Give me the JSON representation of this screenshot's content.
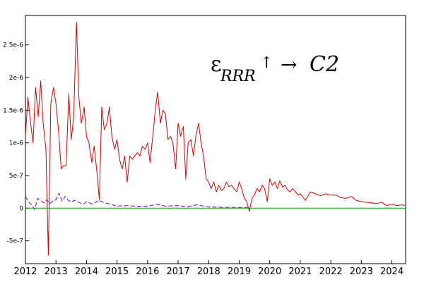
{
  "chart_data": {
    "type": "line",
    "title": "",
    "xlabel": "",
    "ylabel": "",
    "xlim": [
      2012.0,
      2024.45
    ],
    "ylim": [
      -8.5e-07,
      2.95e-06
    ],
    "grid": false,
    "annotation": {
      "symbol": "ε",
      "subscript": "RRR",
      "arrow_up": "↑",
      "arrow_right": "→",
      "target": "C2"
    },
    "x_ticks": [
      {
        "value": 2012,
        "label": "2012"
      },
      {
        "value": 2013,
        "label": "2013"
      },
      {
        "value": 2014,
        "label": "2014"
      },
      {
        "value": 2015,
        "label": "2015"
      },
      {
        "value": 2016,
        "label": "2016"
      },
      {
        "value": 2017,
        "label": "2017"
      },
      {
        "value": 2018,
        "label": "2018"
      },
      {
        "value": 2019,
        "label": "2019"
      },
      {
        "value": 2020,
        "label": "2020"
      },
      {
        "value": 2021,
        "label": "2021"
      },
      {
        "value": 2022,
        "label": "2022"
      },
      {
        "value": 2023,
        "label": "2023"
      },
      {
        "value": 2024,
        "label": "2024"
      }
    ],
    "y_ticks": [
      {
        "value": -5e-07,
        "label": "-5e-7"
      },
      {
        "value": 0,
        "label": "0"
      },
      {
        "value": 5e-07,
        "label": "5e-7"
      },
      {
        "value": 1e-06,
        "label": "1e-6"
      },
      {
        "value": 1.5e-06,
        "label": "1.5e-6"
      },
      {
        "value": 2e-06,
        "label": "2e-6"
      },
      {
        "value": 2.5e-06,
        "label": "2.5e-6"
      }
    ],
    "series": [
      {
        "color": "#d40000",
        "x": [
          2012.0,
          2012.08,
          2012.17,
          2012.25,
          2012.33,
          2012.42,
          2012.5,
          2012.58,
          2012.67,
          2012.75,
          2012.83,
          2012.92,
          2013.0,
          2013.08,
          2013.17,
          2013.25,
          2013.33,
          2013.42,
          2013.5,
          2013.58,
          2013.67,
          2013.75,
          2013.83,
          2013.92,
          2014.0,
          2014.08,
          2014.17,
          2014.25,
          2014.33,
          2014.42,
          2014.5,
          2014.58,
          2014.67,
          2014.75,
          2014.83,
          2014.92,
          2015.0,
          2015.08,
          2015.17,
          2015.25,
          2015.33,
          2015.42,
          2015.5,
          2015.58,
          2015.67,
          2015.75,
          2015.83,
          2015.92,
          2016.0,
          2016.08,
          2016.17,
          2016.25,
          2016.33,
          2016.42,
          2016.5,
          2016.58,
          2016.67,
          2016.75,
          2016.83,
          2016.92,
          2017.0,
          2017.08,
          2017.17,
          2017.25,
          2017.33,
          2017.42,
          2017.5,
          2017.58,
          2017.67,
          2017.75,
          2017.83,
          2017.92,
          2018.0,
          2018.08,
          2018.17,
          2018.25,
          2018.33,
          2018.42,
          2018.5,
          2018.58,
          2018.67,
          2018.75,
          2018.83,
          2018.92,
          2019.0,
          2019.08,
          2019.17,
          2019.25,
          2019.33,
          2019.42,
          2019.5,
          2019.58,
          2019.67,
          2019.75,
          2019.83,
          2019.92,
          2020.0,
          2020.08,
          2020.17,
          2020.25,
          2020.33,
          2020.42,
          2020.5,
          2020.58,
          2020.67,
          2020.75,
          2020.83,
          2020.92,
          2021.0,
          2021.17,
          2021.33,
          2021.5,
          2021.67,
          2021.83,
          2022.0,
          2022.17,
          2022.33,
          2022.5,
          2022.67,
          2022.83,
          2023.0,
          2023.17,
          2023.33,
          2023.5,
          2023.67,
          2023.83,
          2024.0,
          2024.17,
          2024.33,
          2024.42
        ],
        "y": [
          1.1e-06,
          1.7e-06,
          1.3e-06,
          1e-06,
          1.85e-06,
          1.4e-06,
          1.95e-06,
          1.3e-06,
          9e-07,
          -7.2e-07,
          1.6e-06,
          1.85e-06,
          1.6e-06,
          1.2e-06,
          6e-07,
          6.5e-07,
          6.5e-07,
          1.75e-06,
          1.05e-06,
          1.4e-06,
          2.85e-06,
          1.7e-06,
          1.3e-06,
          1.55e-06,
          1.1e-06,
          1e-06,
          7e-07,
          9.5e-07,
          6e-07,
          1.3e-07,
          1.55e-06,
          1.2e-06,
          1.3e-06,
          1.55e-06,
          1.1e-06,
          9e-07,
          1.05e-06,
          7.5e-07,
          6e-07,
          8e-07,
          4e-07,
          8e-07,
          7.5e-07,
          8e-07,
          8.5e-07,
          8e-07,
          9.5e-07,
          9e-07,
          1e-06,
          7e-07,
          1.1e-06,
          1.5e-06,
          1.78e-06,
          1.3e-06,
          1.5e-06,
          1.45e-06,
          1.05e-06,
          1.1e-06,
          1e-06,
          6e-07,
          1.3e-06,
          1.1e-06,
          1.25e-06,
          4.5e-07,
          1e-06,
          1.05e-06,
          8e-07,
          1.1e-06,
          1.3e-06,
          1e-06,
          8e-07,
          4.5e-07,
          4e-07,
          3e-07,
          4e-07,
          2.5e-07,
          3.5e-07,
          2.7e-07,
          3e-07,
          4e-07,
          3.3e-07,
          3.5e-07,
          3e-07,
          2.5e-07,
          4e-07,
          3e-07,
          1.5e-07,
          1e-07,
          -5e-08,
          1.5e-07,
          2e-07,
          3e-07,
          2.5e-07,
          3.5e-07,
          3e-07,
          1e-07,
          4.5e-07,
          3.5e-07,
          4e-07,
          3e-07,
          4.2e-07,
          3.2e-07,
          3.5e-07,
          2.8e-07,
          2.5e-07,
          3e-07,
          2.6e-07,
          2e-07,
          2.2e-07,
          1.2e-07,
          2.5e-07,
          2.2e-07,
          1.9e-07,
          2.2e-07,
          2e-07,
          2e-07,
          1.6e-07,
          1.5e-07,
          1.8e-07,
          1.2e-07,
          1e-07,
          9e-08,
          8e-08,
          7e-08,
          9e-08,
          4e-08,
          6e-08,
          4e-08,
          5e-08,
          4e-08
        ]
      },
      {
        "color": "#6a00c8",
        "dashed": true,
        "x": [
          2012.0,
          2012.1,
          2012.2,
          2012.3,
          2012.4,
          2012.5,
          2012.6,
          2012.7,
          2012.8,
          2012.9,
          2013.0,
          2013.1,
          2013.2,
          2013.3,
          2013.4,
          2013.5,
          2013.6,
          2013.7,
          2013.8,
          2013.9,
          2014.0,
          2014.2,
          2014.4,
          2014.6,
          2014.8,
          2015.0,
          2015.3,
          2015.6,
          2016.0,
          2016.3,
          2016.6,
          2017.0,
          2017.3,
          2017.6,
          2018.0,
          2018.3,
          2018.6,
          2019.0,
          2019.3
        ],
        "y": [
          1.8e-07,
          1e-07,
          5e-08,
          -2e-08,
          1.5e-07,
          1.2e-07,
          8e-08,
          1.3e-07,
          7e-08,
          1.1e-07,
          1.3e-07,
          2.3e-07,
          1.1e-07,
          1.8e-07,
          1.2e-07,
          9e-08,
          1.2e-07,
          1e-07,
          8e-08,
          6e-08,
          1e-07,
          6e-08,
          1.2e-07,
          8e-08,
          6e-08,
          3e-08,
          4e-08,
          3e-08,
          3e-08,
          6e-08,
          3e-08,
          4e-08,
          2e-08,
          5e-08,
          2e-08,
          1.5e-08,
          1e-08,
          1e-08,
          5e-09
        ]
      },
      {
        "color": "#00a000",
        "x": [
          2012.0,
          2024.45
        ],
        "y": [
          0,
          0
        ]
      }
    ]
  }
}
